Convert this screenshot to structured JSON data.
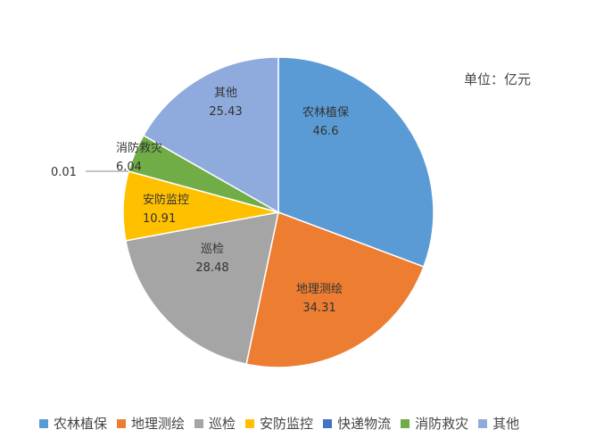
{
  "chart_data": {
    "type": "pie",
    "unit_label": "单位：亿元",
    "categories": [
      "农林植保",
      "地理测绘",
      "巡检",
      "安防监控",
      "快递物流",
      "消防救灾",
      "其他"
    ],
    "values": [
      46.6,
      34.31,
      28.48,
      10.91,
      0.01,
      6.04,
      25.43
    ],
    "value_labels": [
      "46.6",
      "34.31",
      "28.48",
      "10.91",
      "0.01",
      "6.04",
      "25.43"
    ],
    "colors": [
      "#5B9BD5",
      "#ED7D31",
      "#A5A5A5",
      "#FFC000",
      "#4472C4",
      "#70AD47",
      "#8FAADC"
    ],
    "start": "12 o'clock, clockwise",
    "legend_position": "bottom"
  }
}
